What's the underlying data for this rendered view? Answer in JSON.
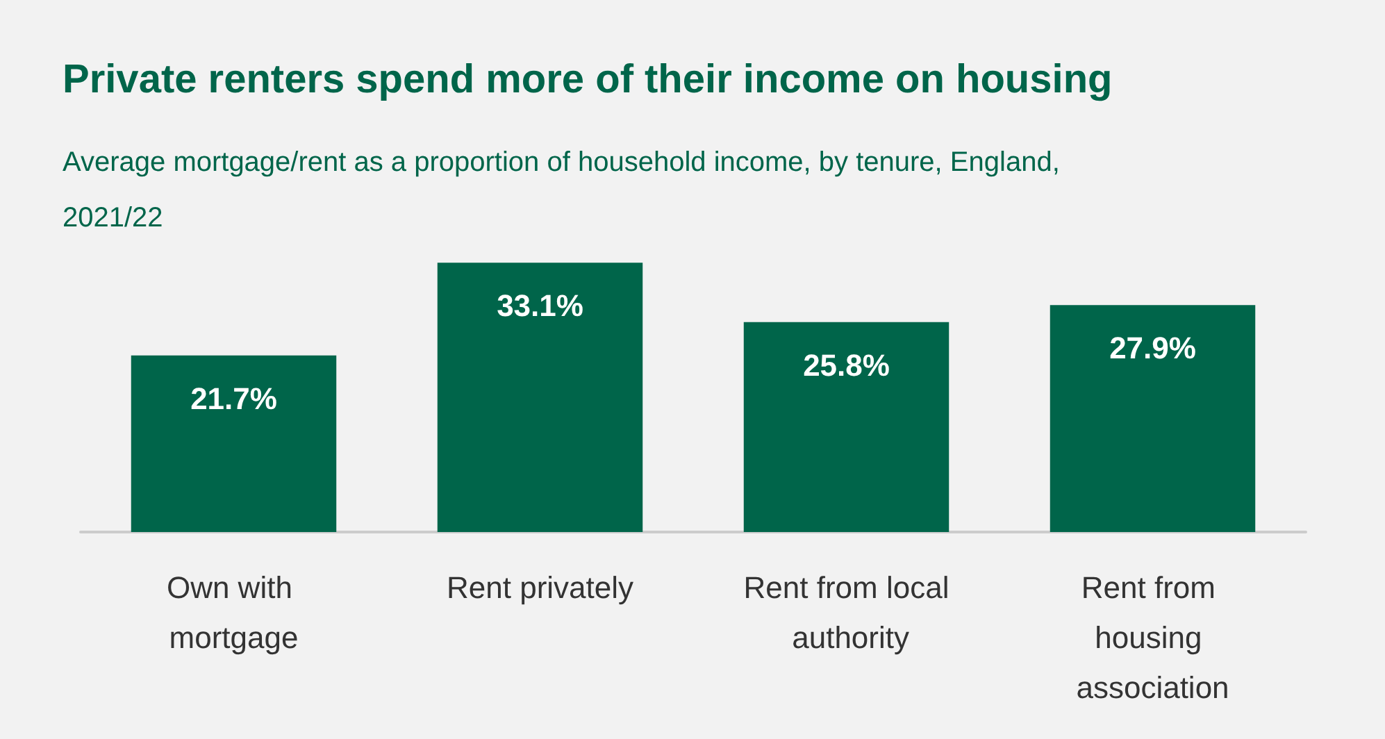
{
  "chart_data": {
    "type": "bar",
    "title": "Private renters spend more of their income on housing",
    "subtitle": "Average mortgage/rent as a proportion of household income, by tenure, England, 2021/22",
    "categories": [
      "Own with mortgage",
      "Rent privately",
      "Rent from local authority",
      "Rent from housing association"
    ],
    "values": [
      21.7,
      33.1,
      25.8,
      27.9
    ],
    "value_labels": [
      "21.7%",
      "33.1%",
      "25.8%",
      "27.9%"
    ],
    "color": "#00654a"
  }
}
